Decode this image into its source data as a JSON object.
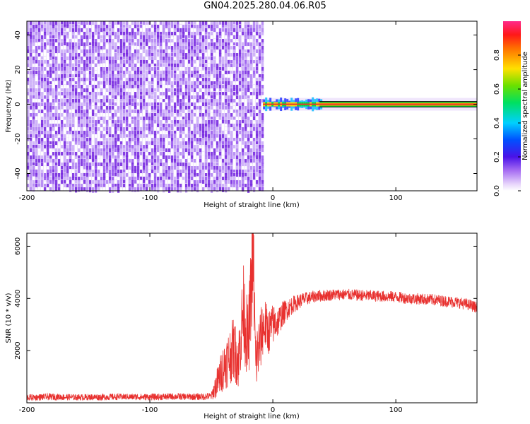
{
  "title": "GN04.2025.280.04.06.R05",
  "colors": {
    "snr_line": "#e8312f",
    "noise_light": "#ece0fb",
    "noise_mid": "#b487f3",
    "noise_dark": "#7a2ee0",
    "signal_core": "#e8312f",
    "signal_edge": "#00c02a",
    "axis": "#000000"
  },
  "chart_data": [
    {
      "type": "heatmap",
      "title": "GN04.2025.280.04.06.R05",
      "xlabel": "Height of straight line (km)",
      "ylabel": "Frequency (Hz)",
      "xlim": [
        -200,
        166
      ],
      "ylim": [
        -50,
        48
      ],
      "x_ticks": [
        -200,
        -100,
        0,
        100
      ],
      "y_ticks": [
        -40,
        -20,
        0,
        20,
        40
      ],
      "colorbar": {
        "label": "Normalized spectral amplitude",
        "range": [
          0,
          1
        ],
        "ticks": [
          0.0,
          0.2,
          0.4,
          0.6,
          0.8
        ],
        "colormap": "rainbow (purple-blue-cyan-green-yellow-orange-red-magenta)"
      },
      "regions": {
        "noise_x_range": [
          -200,
          -8
        ],
        "signal_x_range": [
          -8,
          166
        ],
        "signal_frequency_hz": 0
      },
      "grid": false
    },
    {
      "type": "line",
      "xlabel": "Height of straight line (km)",
      "ylabel": "SNR (10 * v/v)",
      "xlim": [
        -200,
        166
      ],
      "ylim": [
        0,
        6500
      ],
      "x_ticks": [
        -200,
        -100,
        0,
        100
      ],
      "y_ticks": [
        2000,
        4000,
        6000
      ],
      "series": [
        {
          "x": [
            -200,
            -180,
            -160,
            -140,
            -120,
            -100,
            -80,
            -60,
            -50,
            -44,
            -40,
            -36,
            -32,
            -28,
            -24,
            -20,
            -16,
            -14,
            -12,
            -10,
            -8,
            -6,
            -4,
            -2,
            0,
            4,
            8,
            12,
            16,
            20,
            24,
            28,
            32,
            36,
            40,
            50,
            60,
            70,
            80,
            90,
            100,
            110,
            120,
            130,
            140,
            150,
            160,
            166
          ],
          "y": [
            200,
            230,
            210,
            220,
            230,
            220,
            240,
            230,
            250,
            900,
            1400,
            1700,
            2100,
            1600,
            3600,
            2200,
            5900,
            1500,
            2000,
            2400,
            2900,
            3000,
            2700,
            2800,
            3000,
            3100,
            3400,
            3600,
            3750,
            3850,
            3950,
            4000,
            4050,
            4100,
            4100,
            4150,
            4150,
            4120,
            4100,
            4080,
            4060,
            4000,
            3980,
            3950,
            3900,
            3850,
            3750,
            3650
          ],
          "noise_amplitude": [
            120,
            130,
            120,
            130,
            120,
            130,
            130,
            130,
            150,
            700,
            900,
            1100,
            1200,
            1100,
            1800,
            1500,
            2200,
            1200,
            1300,
            1200,
            1100,
            1000,
            900,
            850,
            800,
            600,
            500,
            400,
            350,
            300,
            280,
            250,
            240,
            230,
            230,
            220,
            220,
            220,
            220,
            220,
            220,
            220,
            220,
            220,
            220,
            220,
            220,
            220
          ]
        }
      ],
      "grid": false
    }
  ]
}
